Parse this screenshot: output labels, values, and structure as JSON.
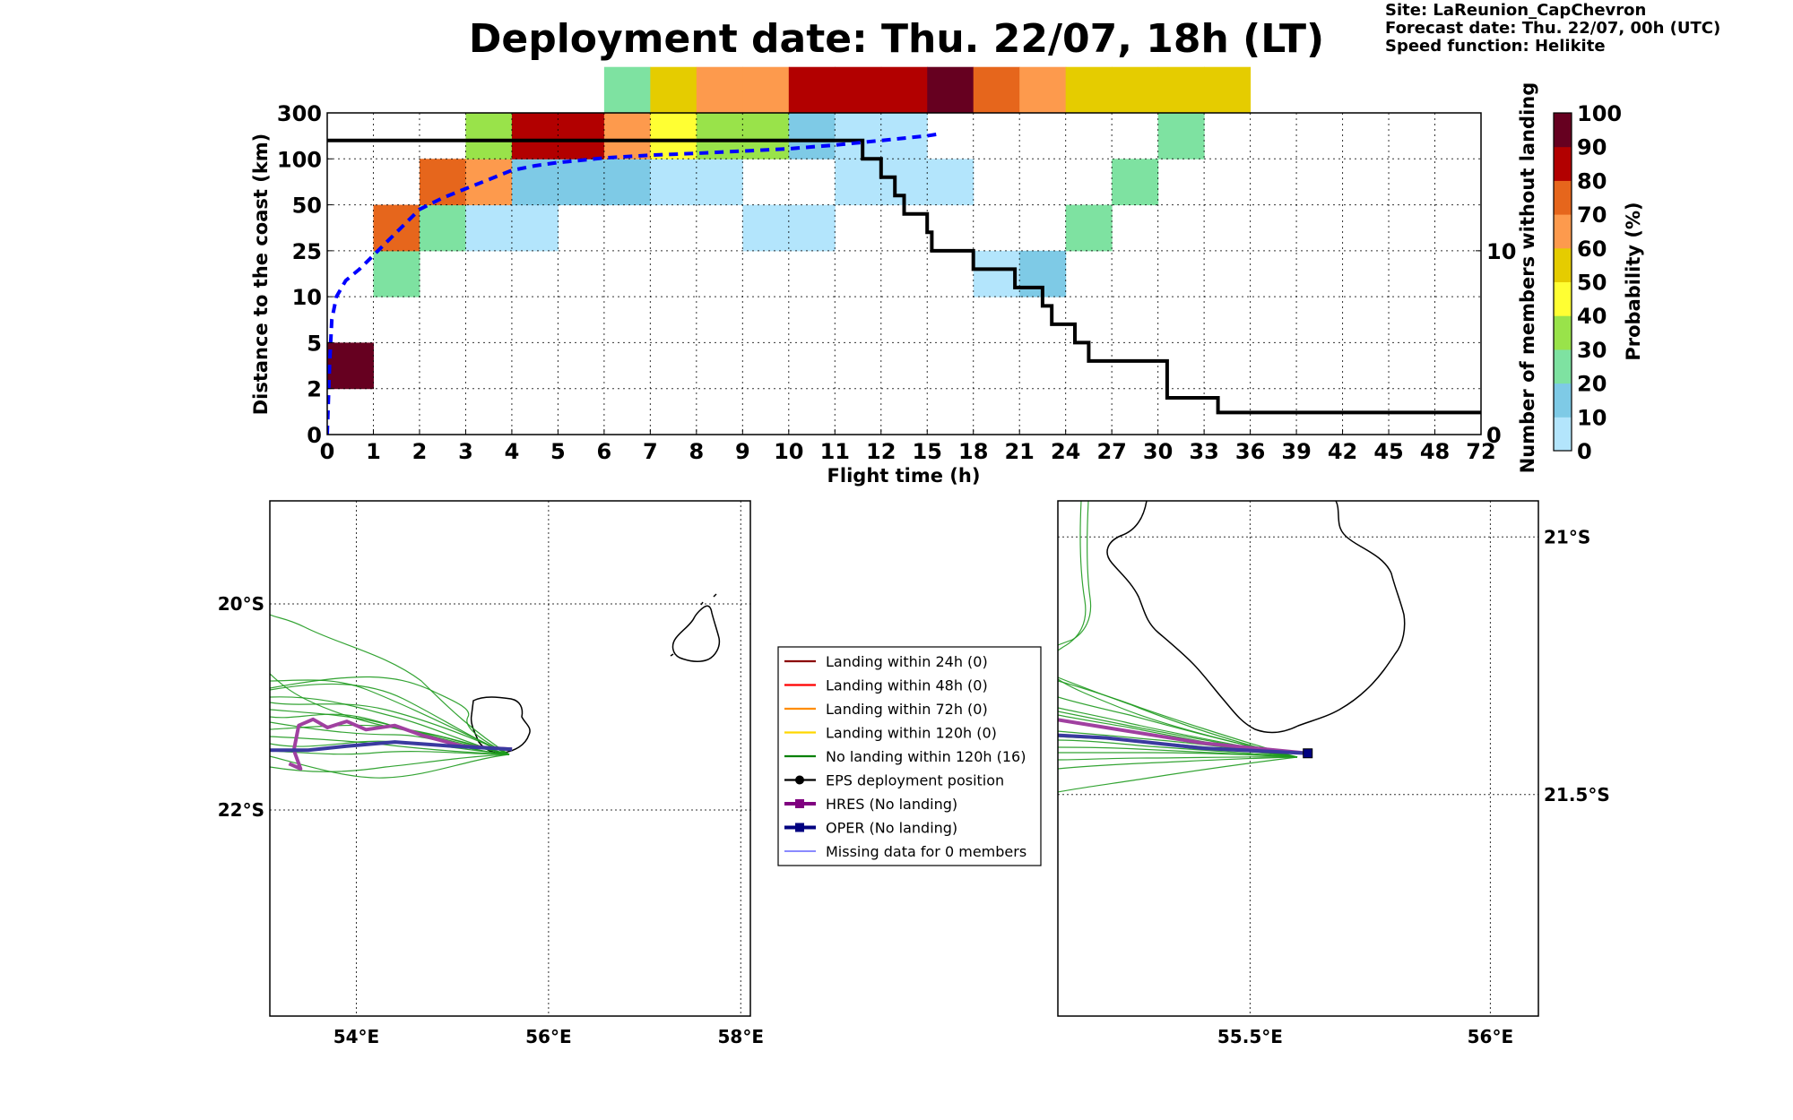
{
  "title": "Deployment date: Thu. 22/07, 18h (LT)",
  "meta": {
    "site": "Site: LaReunion_CapChevron",
    "forecast": "Forecast date: Thu. 22/07, 00h (UTC)",
    "speed": "Speed function: Helikite"
  },
  "colors": {
    "bins": [
      "#b3e5fc",
      "#7ecae6",
      "#7ee2a1",
      "#99e34a",
      "#ffff33",
      "#e5cc00",
      "#fd9a4d",
      "#e6661c",
      "#b20000",
      "#660020"
    ],
    "ensemble": "#008000",
    "hres": "#800080",
    "oper": "#000080",
    "missing": "#4444ff"
  },
  "chart_data": [
    {
      "type": "heatmap",
      "xlabel": "Flight time (h)",
      "ylabel": "Distance to the coast (km)",
      "ylabel_right": "Number of members without landing",
      "colorbar_label": "Probability (%)",
      "x_ticks": [
        "0",
        "1",
        "2",
        "3",
        "4",
        "5",
        "6",
        "7",
        "8",
        "9",
        "10",
        "11",
        "12",
        "15",
        "18",
        "21",
        "24",
        "27",
        "30",
        "33",
        "36",
        "39",
        "42",
        "45",
        "48",
        "72"
      ],
      "y_ticks": [
        "0",
        "2",
        "5",
        "10",
        "25",
        "50",
        "100",
        "300"
      ],
      "right_ticks": [
        "0",
        "10"
      ],
      "right_ylim": [
        0,
        17.5
      ],
      "colorbar_ticks": [
        "0",
        "10",
        "20",
        "30",
        "40",
        "50",
        "60",
        "70",
        "80",
        "90",
        "100"
      ],
      "grid": true,
      "cells": [
        {
          "x": 0,
          "y": 1,
          "bin": 9
        },
        {
          "x": 1,
          "y": 3,
          "bin": 2
        },
        {
          "x": 1,
          "y": 4,
          "bin": 7
        },
        {
          "x": 2,
          "y": 4,
          "bin": 2
        },
        {
          "x": 2,
          "y": 5,
          "bin": 7
        },
        {
          "x": 3,
          "y": 4,
          "bin": 0
        },
        {
          "x": 3,
          "y": 5,
          "bin": 6
        },
        {
          "x": 3,
          "y": 6,
          "bin": 3
        },
        {
          "x": 4,
          "y": 4,
          "bin": 0
        },
        {
          "x": 4,
          "y": 5,
          "bin": 1
        },
        {
          "x": 4,
          "y": 6,
          "bin": 8
        },
        {
          "x": 5,
          "y": 5,
          "bin": 1
        },
        {
          "x": 5,
          "y": 6,
          "bin": 8
        },
        {
          "x": 6,
          "y": 5,
          "bin": 1
        },
        {
          "x": 6,
          "y": 6,
          "bin": 6
        },
        {
          "x": 6,
          "y": 7,
          "bin": 2
        },
        {
          "x": 7,
          "y": 5,
          "bin": 0
        },
        {
          "x": 7,
          "y": 6,
          "bin": 4
        },
        {
          "x": 7,
          "y": 7,
          "bin": 5
        },
        {
          "x": 8,
          "y": 5,
          "bin": 0
        },
        {
          "x": 8,
          "y": 6,
          "bin": 3
        },
        {
          "x": 8,
          "y": 7,
          "bin": 6
        },
        {
          "x": 9,
          "y": 4,
          "bin": 0
        },
        {
          "x": 9,
          "y": 6,
          "bin": 3
        },
        {
          "x": 9,
          "y": 7,
          "bin": 6
        },
        {
          "x": 10,
          "y": 4,
          "bin": 0
        },
        {
          "x": 10,
          "y": 6,
          "bin": 1
        },
        {
          "x": 10,
          "y": 7,
          "bin": 8
        },
        {
          "x": 11,
          "y": 5,
          "bin": 0
        },
        {
          "x": 11,
          "y": 6,
          "bin": 0
        },
        {
          "x": 11,
          "y": 7,
          "bin": 8
        },
        {
          "x": 12,
          "y": 5,
          "bin": 0
        },
        {
          "x": 12,
          "y": 6,
          "bin": 0
        },
        {
          "x": 12,
          "y": 7,
          "bin": 8
        },
        {
          "x": 13,
          "y": 5,
          "bin": 0
        },
        {
          "x": 13,
          "y": 7,
          "bin": 9
        },
        {
          "x": 14,
          "y": 3,
          "bin": 0
        },
        {
          "x": 14,
          "y": 7,
          "bin": 7
        },
        {
          "x": 15,
          "y": 3,
          "bin": 1
        },
        {
          "x": 15,
          "y": 7,
          "bin": 6
        },
        {
          "x": 16,
          "y": 4,
          "bin": 2
        },
        {
          "x": 16,
          "y": 7,
          "bin": 5
        },
        {
          "x": 17,
          "y": 5,
          "bin": 2
        },
        {
          "x": 17,
          "y": 7,
          "bin": 5
        },
        {
          "x": 18,
          "y": 6,
          "bin": 2
        },
        {
          "x": 18,
          "y": 7,
          "bin": 5
        },
        {
          "x": 19,
          "y": 7,
          "bin": 5
        }
      ],
      "members_without_landing_steps": [
        [
          0,
          16
        ],
        [
          11.6,
          16
        ],
        [
          11.6,
          15
        ],
        [
          12.0,
          15
        ],
        [
          12.0,
          14
        ],
        [
          12.3,
          14
        ],
        [
          12.3,
          13
        ],
        [
          12.5,
          13
        ],
        [
          12.5,
          12
        ],
        [
          13.0,
          12
        ],
        [
          13.0,
          11
        ],
        [
          13.1,
          11
        ],
        [
          13.1,
          10
        ],
        [
          14.0,
          10
        ],
        [
          14.0,
          9
        ],
        [
          14.9,
          9
        ],
        [
          14.9,
          8
        ],
        [
          15.5,
          8
        ],
        [
          15.5,
          7
        ],
        [
          15.7,
          7
        ],
        [
          15.7,
          6
        ],
        [
          16.2,
          6
        ],
        [
          16.2,
          5
        ],
        [
          16.5,
          5
        ],
        [
          16.5,
          4
        ],
        [
          18.2,
          4
        ],
        [
          18.2,
          2
        ],
        [
          19.3,
          2
        ],
        [
          19.3,
          1.2
        ],
        [
          25,
          1.2
        ]
      ],
      "median_distance_curve": [
        [
          0,
          0
        ],
        [
          0.05,
          1.5
        ],
        [
          0.1,
          2.5
        ],
        [
          0.2,
          3.0
        ],
        [
          0.4,
          3.35
        ],
        [
          0.7,
          3.6
        ],
        [
          1.0,
          3.9
        ],
        [
          1.3,
          4.2
        ],
        [
          1.6,
          4.5
        ],
        [
          2.0,
          4.9
        ],
        [
          2.5,
          5.15
        ],
        [
          3.0,
          5.35
        ],
        [
          3.5,
          5.55
        ],
        [
          4.0,
          5.75
        ],
        [
          4.5,
          5.85
        ],
        [
          5.0,
          5.92
        ],
        [
          6.0,
          6.02
        ],
        [
          7.0,
          6.08
        ],
        [
          8.0,
          6.12
        ],
        [
          9.0,
          6.17
        ],
        [
          10.0,
          6.22
        ],
        [
          11.0,
          6.3
        ],
        [
          12.0,
          6.4
        ],
        [
          13.0,
          6.5
        ],
        [
          13.3,
          6.55
        ]
      ]
    },
    {
      "type": "map",
      "x_ticks": [
        "54°E",
        "56°E",
        "58°E"
      ],
      "x_tick_values": [
        54,
        56,
        58
      ],
      "y_ticks": [
        "20°S",
        "22°S"
      ],
      "y_tick_values": [
        -20,
        -22
      ],
      "xlim": [
        53.1,
        58.1
      ],
      "ylim": [
        -24.0,
        -19.0
      ],
      "deployment": [
        55.62,
        -21.41
      ],
      "hres_track": [
        [
          55.62,
          -21.41
        ],
        [
          55.1,
          -21.38
        ],
        [
          54.7,
          -21.28
        ],
        [
          54.4,
          -21.18
        ],
        [
          54.1,
          -21.22
        ],
        [
          53.9,
          -21.14
        ],
        [
          53.7,
          -21.2
        ],
        [
          53.55,
          -21.12
        ],
        [
          53.4,
          -21.18
        ],
        [
          53.35,
          -21.42
        ],
        [
          53.42,
          -21.6
        ],
        [
          53.3,
          -21.55
        ]
      ],
      "oper_track": [
        [
          55.62,
          -21.41
        ],
        [
          55.0,
          -21.38
        ],
        [
          54.4,
          -21.34
        ],
        [
          53.9,
          -21.38
        ],
        [
          53.5,
          -21.42
        ],
        [
          53.1,
          -21.42
        ]
      ]
    },
    {
      "type": "map",
      "x_ticks": [
        "55.5°E",
        "56°E"
      ],
      "x_tick_values": [
        55.5,
        56.0
      ],
      "y_ticks": [
        "21°S",
        "21.5°S"
      ],
      "y_tick_values": [
        -21.0,
        -21.5
      ],
      "xlim": [
        55.1,
        56.1
      ],
      "ylim": [
        -21.93,
        -20.93
      ],
      "deployment": [
        55.62,
        -21.42
      ],
      "hres_track": [
        [
          55.62,
          -21.42
        ],
        [
          55.4,
          -21.4
        ],
        [
          55.2,
          -21.37
        ],
        [
          55.1,
          -21.355
        ]
      ],
      "oper_track": [
        [
          55.62,
          -21.42
        ],
        [
          55.4,
          -21.41
        ],
        [
          55.2,
          -21.39
        ],
        [
          55.1,
          -21.385
        ]
      ]
    }
  ],
  "legend": [
    {
      "label": "Landing within 24h (0)",
      "color": "#8b0000",
      "style": "line"
    },
    {
      "label": "Landing within 48h (0)",
      "color": "#ff0000",
      "style": "line"
    },
    {
      "label": "Landing within 72h (0)",
      "color": "#ff8c00",
      "style": "line"
    },
    {
      "label": "Landing within 120h (0)",
      "color": "#ffd700",
      "style": "line"
    },
    {
      "label": "No landing within 120h (16)",
      "color": "#008000",
      "style": "line"
    },
    {
      "label": "EPS deployment position",
      "color": "#000000",
      "style": "dot"
    },
    {
      "label": "HRES (No landing)",
      "color": "#800080",
      "style": "square-thick"
    },
    {
      "label": "OPER (No landing)",
      "color": "#000080",
      "style": "square-thick"
    },
    {
      "label": "Missing data for 0 members",
      "color": "#4444ff",
      "style": "thin"
    }
  ]
}
